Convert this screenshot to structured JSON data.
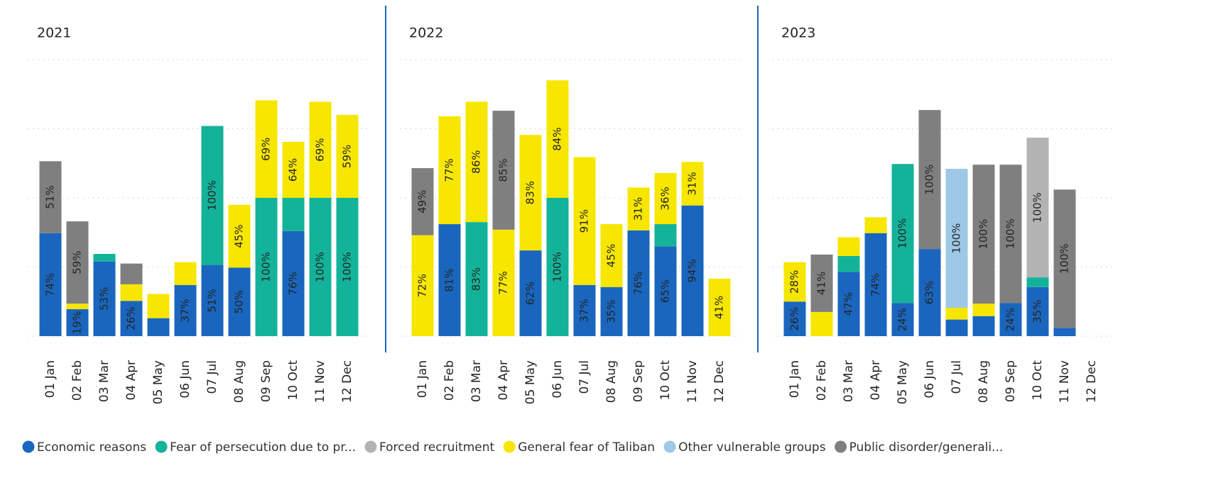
{
  "legend": [
    {
      "name": "Economic reasons",
      "color": "#1a66be"
    },
    {
      "name": "Fear of persecution due to pr...",
      "color": "#13b39a"
    },
    {
      "name": "Forced recruitment",
      "color": "#b3b3b3"
    },
    {
      "name": "General fear of Taliban",
      "color": "#f7e600"
    },
    {
      "name": "Other vulnerable groups",
      "color": "#9dc8e6"
    },
    {
      "name": "Public disorder/generali...",
      "color": "#7f7f7f"
    }
  ],
  "chart_data": [
    {
      "type": "stacked_bar",
      "title": "2021",
      "categories": [
        "01 Jan",
        "02 Feb",
        "03 Mar",
        "04 Apr",
        "05 May",
        "06 Jun",
        "07 Jul",
        "08 Aug",
        "09 Sep",
        "10 Oct",
        "11 Nov",
        "12 Dec"
      ],
      "ylim": [
        0,
        4.2
      ],
      "gridlines": [
        0,
        1,
        2,
        3,
        4
      ],
      "series": [
        {
          "values": [
            1.49,
            0.39,
            1.08,
            0.51,
            0.26,
            0.74,
            1.03,
            0.99,
            null,
            1.52,
            null,
            null
          ],
          "labels": [
            "74%",
            "19%",
            "53%",
            "26%",
            null,
            "37%",
            "51%",
            "50%",
            null,
            "76%",
            null,
            null
          ]
        },
        {
          "values": [
            null,
            null,
            0.11,
            null,
            null,
            null,
            2.01,
            null,
            2.0,
            0.48,
            2.0,
            2.0
          ],
          "labels": [
            null,
            null,
            null,
            null,
            null,
            null,
            "100%",
            null,
            "100%",
            null,
            "100%",
            "100%"
          ]
        },
        {
          "values": [
            null,
            null,
            null,
            null,
            null,
            null,
            null,
            null,
            null,
            null,
            null,
            null
          ],
          "labels": [
            null,
            null,
            null,
            null,
            null,
            null,
            null,
            null,
            null,
            null,
            null,
            null
          ]
        },
        {
          "values": [
            null,
            0.08,
            null,
            0.24,
            0.35,
            0.33,
            null,
            0.91,
            1.41,
            0.81,
            1.39,
            1.2
          ],
          "labels": [
            null,
            null,
            null,
            null,
            null,
            null,
            null,
            "45%",
            "69%",
            "64%",
            "69%",
            "59%"
          ]
        },
        {
          "values": [
            null,
            null,
            null,
            null,
            null,
            null,
            null,
            null,
            null,
            null,
            null,
            null
          ],
          "labels": [
            null,
            null,
            null,
            null,
            null,
            null,
            null,
            null,
            null,
            null,
            null,
            null
          ]
        },
        {
          "values": [
            1.04,
            1.19,
            null,
            0.3,
            null,
            null,
            null,
            null,
            null,
            null,
            null,
            null
          ],
          "labels": [
            "51%",
            "59%",
            null,
            null,
            null,
            null,
            null,
            null,
            null,
            null,
            null,
            null
          ]
        }
      ]
    },
    {
      "type": "stacked_bar",
      "title": "2022",
      "categories": [
        "01 Jan",
        "02 Feb",
        "03 Mar",
        "04 Apr",
        "05 May",
        "06 Jun",
        "07 Jul",
        "08 Aug",
        "09 Sep",
        "10 Oct",
        "11 Nov",
        "12 Dec"
      ],
      "ylim": [
        0,
        4.2
      ],
      "gridlines": [
        0,
        1,
        2,
        3,
        4
      ],
      "series": [
        {
          "values": [
            null,
            1.62,
            null,
            null,
            1.24,
            null,
            0.74,
            0.71,
            1.53,
            1.3,
            1.89,
            null
          ],
          "labels": [
            null,
            "81%",
            null,
            null,
            "62%",
            null,
            "37%",
            "35%",
            "76%",
            "65%",
            "94%",
            null
          ]
        },
        {
          "values": [
            null,
            null,
            1.65,
            null,
            null,
            2.0,
            null,
            null,
            null,
            0.32,
            null,
            null
          ],
          "labels": [
            null,
            null,
            "83%",
            null,
            null,
            "100%",
            null,
            null,
            null,
            null,
            null,
            null
          ]
        },
        {
          "values": [
            null,
            null,
            null,
            null,
            null,
            null,
            null,
            null,
            null,
            null,
            null,
            null
          ],
          "labels": [
            null,
            null,
            null,
            null,
            null,
            null,
            null,
            null,
            null,
            null,
            null,
            null
          ]
        },
        {
          "values": [
            1.46,
            1.56,
            1.74,
            1.54,
            1.67,
            1.7,
            1.85,
            0.91,
            0.62,
            0.74,
            0.63,
            0.83
          ],
          "labels": [
            "72%",
            "77%",
            "86%",
            "77%",
            "83%",
            "84%",
            "91%",
            "45%",
            "31%",
            "36%",
            "31%",
            "41%"
          ]
        },
        {
          "values": [
            null,
            null,
            null,
            null,
            null,
            null,
            null,
            null,
            null,
            null,
            null,
            null
          ],
          "labels": [
            null,
            null,
            null,
            null,
            null,
            null,
            null,
            null,
            null,
            null,
            null,
            null
          ]
        },
        {
          "values": [
            0.97,
            null,
            null,
            1.72,
            null,
            null,
            null,
            null,
            null,
            null,
            null,
            null
          ],
          "labels": [
            "49%",
            null,
            null,
            "85%",
            null,
            null,
            null,
            null,
            null,
            null,
            null,
            null
          ]
        }
      ]
    },
    {
      "type": "stacked_bar",
      "title": "2023",
      "categories": [
        "01 Jan",
        "02 Feb",
        "03 Mar",
        "04 Apr",
        "05 May",
        "06 Jun",
        "07 Jul",
        "08 Aug",
        "09 Sep",
        "10 Oct",
        "11 Nov",
        "12 Dec"
      ],
      "ylim": [
        0,
        4.2
      ],
      "gridlines": [
        0,
        1,
        2,
        3,
        4
      ],
      "series": [
        {
          "values": [
            0.5,
            null,
            0.93,
            1.49,
            0.48,
            1.26,
            0.24,
            0.29,
            0.48,
            0.71,
            0.12,
            null
          ],
          "labels": [
            "26%",
            null,
            "47%",
            "74%",
            "24%",
            "63%",
            null,
            null,
            "24%",
            "35%",
            null,
            null
          ]
        },
        {
          "values": [
            null,
            null,
            0.23,
            null,
            2.01,
            null,
            null,
            null,
            null,
            0.14,
            null,
            null
          ],
          "labels": [
            null,
            null,
            null,
            null,
            "100%",
            null,
            null,
            null,
            null,
            null,
            null,
            null
          ]
        },
        {
          "values": [
            null,
            null,
            null,
            null,
            null,
            null,
            null,
            null,
            null,
            2.02,
            null,
            null
          ],
          "labels": [
            null,
            null,
            null,
            null,
            null,
            null,
            null,
            null,
            null,
            "100%",
            null,
            null
          ]
        },
        {
          "values": [
            0.57,
            0.35,
            0.27,
            0.23,
            null,
            null,
            0.17,
            0.18,
            null,
            null,
            null,
            null
          ],
          "labels": [
            "28%",
            null,
            null,
            null,
            null,
            null,
            null,
            null,
            null,
            null,
            null,
            null
          ]
        },
        {
          "values": [
            null,
            null,
            null,
            null,
            null,
            null,
            2.01,
            null,
            null,
            null,
            null,
            null
          ],
          "labels": [
            null,
            null,
            null,
            null,
            null,
            null,
            "100%",
            null,
            null,
            null,
            null,
            null
          ]
        },
        {
          "values": [
            null,
            0.83,
            null,
            null,
            null,
            2.01,
            null,
            2.01,
            2.0,
            null,
            2.0,
            null
          ],
          "labels": [
            null,
            "41%",
            null,
            null,
            null,
            "100%",
            null,
            "100%",
            "100%",
            null,
            "100%",
            null
          ]
        }
      ]
    }
  ]
}
